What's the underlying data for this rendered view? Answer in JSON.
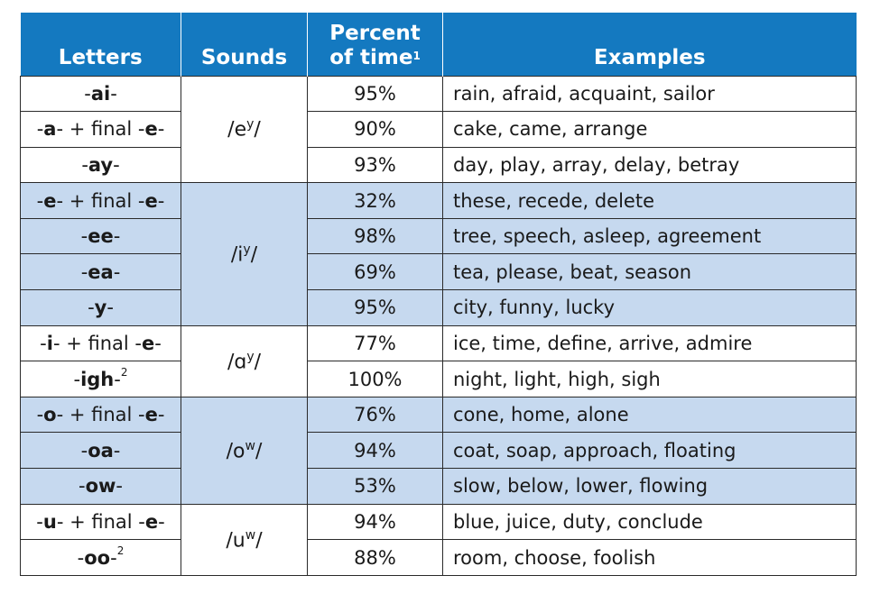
{
  "header": {
    "letters": "Letters",
    "sounds": "Sounds",
    "percent_line1": "Percent",
    "percent_line2": "of time",
    "percent_note": "1",
    "examples": "Examples"
  },
  "groups": [
    {
      "sound_base": "/e",
      "sound_sup": "y",
      "sound_close": "/",
      "rows": [
        {
          "letters_pre": "-",
          "letters_bold": "ai",
          "letters_mid": "-",
          "letters_bold2": "",
          "letters_post": "",
          "note": "",
          "percent": "95%",
          "examples": "rain, afraid, acquaint, sailor"
        },
        {
          "letters_pre": "-",
          "letters_bold": "a",
          "letters_mid": "- + final -",
          "letters_bold2": "e",
          "letters_post": "-",
          "note": "",
          "percent": "90%",
          "examples": "cake, came, arrange"
        },
        {
          "letters_pre": "-",
          "letters_bold": "ay",
          "letters_mid": "-",
          "letters_bold2": "",
          "letters_post": "",
          "note": "",
          "percent": "93%",
          "examples": "day, play, array, delay, betray"
        }
      ]
    },
    {
      "sound_base": "/i",
      "sound_sup": "y",
      "sound_close": "/",
      "rows": [
        {
          "letters_pre": "-",
          "letters_bold": "e",
          "letters_mid": "- + final -",
          "letters_bold2": "e",
          "letters_post": "-",
          "note": "",
          "percent": "32%",
          "examples": "these, recede, delete"
        },
        {
          "letters_pre": "-",
          "letters_bold": "ee",
          "letters_mid": "-",
          "letters_bold2": "",
          "letters_post": "",
          "note": "",
          "percent": "98%",
          "examples": "tree, speech, asleep, agreement"
        },
        {
          "letters_pre": "-",
          "letters_bold": "ea",
          "letters_mid": "-",
          "letters_bold2": "",
          "letters_post": "",
          "note": "",
          "percent": "69%",
          "examples": "tea, please, beat, season"
        },
        {
          "letters_pre": "-",
          "letters_bold": "y",
          "letters_mid": "-",
          "letters_bold2": "",
          "letters_post": "",
          "note": "",
          "percent": "95%",
          "examples": "city, funny, lucky"
        }
      ]
    },
    {
      "sound_base": "/ɑ",
      "sound_sup": "y",
      "sound_close": "/",
      "rows": [
        {
          "letters_pre": "-",
          "letters_bold": "i",
          "letters_mid": "- + final -",
          "letters_bold2": "e",
          "letters_post": "-",
          "note": "",
          "percent": "77%",
          "examples": "ice, time, define, arrive, admire"
        },
        {
          "letters_pre": "-",
          "letters_bold": "igh",
          "letters_mid": "-",
          "letters_bold2": "",
          "letters_post": "",
          "note": "2",
          "percent": "100%",
          "examples": "night, light, high, sigh"
        }
      ]
    },
    {
      "sound_base": "/o",
      "sound_sup": "w",
      "sound_close": "/",
      "rows": [
        {
          "letters_pre": "-",
          "letters_bold": "o",
          "letters_mid": "- + final -",
          "letters_bold2": "e",
          "letters_post": "-",
          "note": "",
          "percent": "76%",
          "examples": "cone, home, alone"
        },
        {
          "letters_pre": "-",
          "letters_bold": "oa",
          "letters_mid": "-",
          "letters_bold2": "",
          "letters_post": "",
          "note": "",
          "percent": "94%",
          "examples": "coat, soap, approach, floating"
        },
        {
          "letters_pre": "-",
          "letters_bold": "ow",
          "letters_mid": "-",
          "letters_bold2": "",
          "letters_post": "",
          "note": "",
          "percent": "53%",
          "examples": "slow, below, lower, flowing"
        }
      ]
    },
    {
      "sound_base": "/u",
      "sound_sup": "w",
      "sound_close": "/",
      "rows": [
        {
          "letters_pre": "-",
          "letters_bold": "u",
          "letters_mid": "- + final -",
          "letters_bold2": "e",
          "letters_post": "-",
          "note": "",
          "percent": "94%",
          "examples": "blue, juice, duty, conclude"
        },
        {
          "letters_pre": "-",
          "letters_bold": "oo",
          "letters_mid": "-",
          "letters_bold2": "",
          "letters_post": "",
          "note": "2",
          "percent": "88%",
          "examples": "room, choose, foolish"
        }
      ]
    }
  ],
  "colors": {
    "header_bg": "#1479c0",
    "shaded_row": "#c6d9ef",
    "plain_row": "#ffffff"
  }
}
